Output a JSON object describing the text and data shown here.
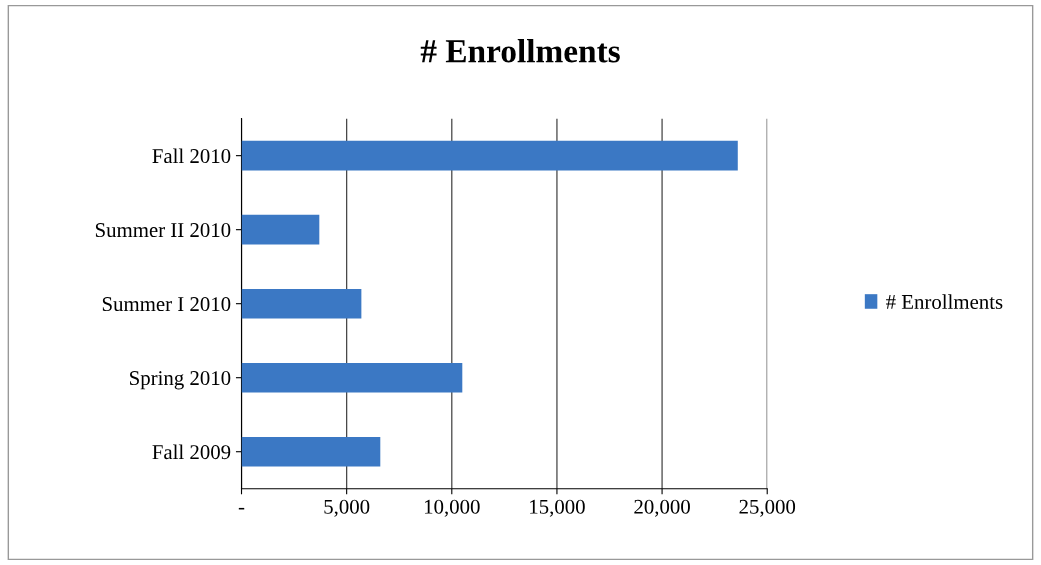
{
  "chart_data": {
    "type": "bar",
    "orientation": "horizontal",
    "title": "# Enrollments",
    "categories": [
      "Fall 2010",
      "Summer II 2010",
      "Summer I 2010",
      "Spring 2010",
      "Fall 2009"
    ],
    "series": [
      {
        "name": "# Enrollments",
        "color": "#3b78c4",
        "values": [
          23600,
          3700,
          5700,
          10500,
          6600
        ]
      }
    ],
    "xlim": [
      0,
      25000
    ],
    "xticks": [
      {
        "value": 0,
        "label": "-"
      },
      {
        "value": 5000,
        "label": "5,000"
      },
      {
        "value": 10000,
        "label": "10,000"
      },
      {
        "value": 15000,
        "label": "15,000"
      },
      {
        "value": 20000,
        "label": "20,000"
      },
      {
        "value": 25000,
        "label": "25,000"
      }
    ],
    "grid": "x",
    "legend": "right"
  }
}
